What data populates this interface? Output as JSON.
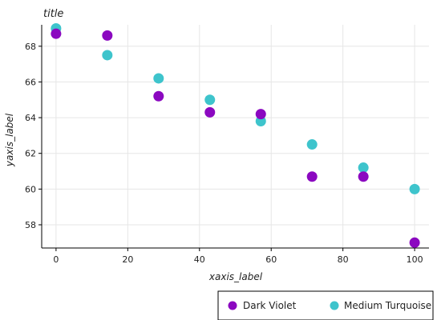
{
  "chart_data": {
    "type": "scatter",
    "title": "title",
    "xlabel": "xaxis_label",
    "ylabel": "yaxis_label",
    "xlim": [
      -4,
      104
    ],
    "ylim": [
      56.7,
      69.2
    ],
    "xticks": [
      0,
      20,
      40,
      60,
      80,
      100
    ],
    "yticks": [
      58,
      60,
      62,
      64,
      66,
      68
    ],
    "grid": true,
    "legend_position": "bottom-right",
    "series": [
      {
        "name": "Dark Violet",
        "color": "#8B08C0",
        "x": [
          0,
          14.3,
          28.6,
          42.9,
          57.1,
          71.4,
          85.7,
          100
        ],
        "y": [
          68.7,
          68.6,
          65.2,
          64.3,
          64.2,
          60.7,
          60.7,
          57.0
        ]
      },
      {
        "name": "Medium Turquoise",
        "color": "#3EC4CC",
        "x": [
          0,
          14.3,
          28.6,
          42.9,
          57.1,
          71.4,
          85.7,
          100
        ],
        "y": [
          69.0,
          67.5,
          66.2,
          65.0,
          63.8,
          62.5,
          61.2,
          60.0
        ]
      }
    ]
  }
}
